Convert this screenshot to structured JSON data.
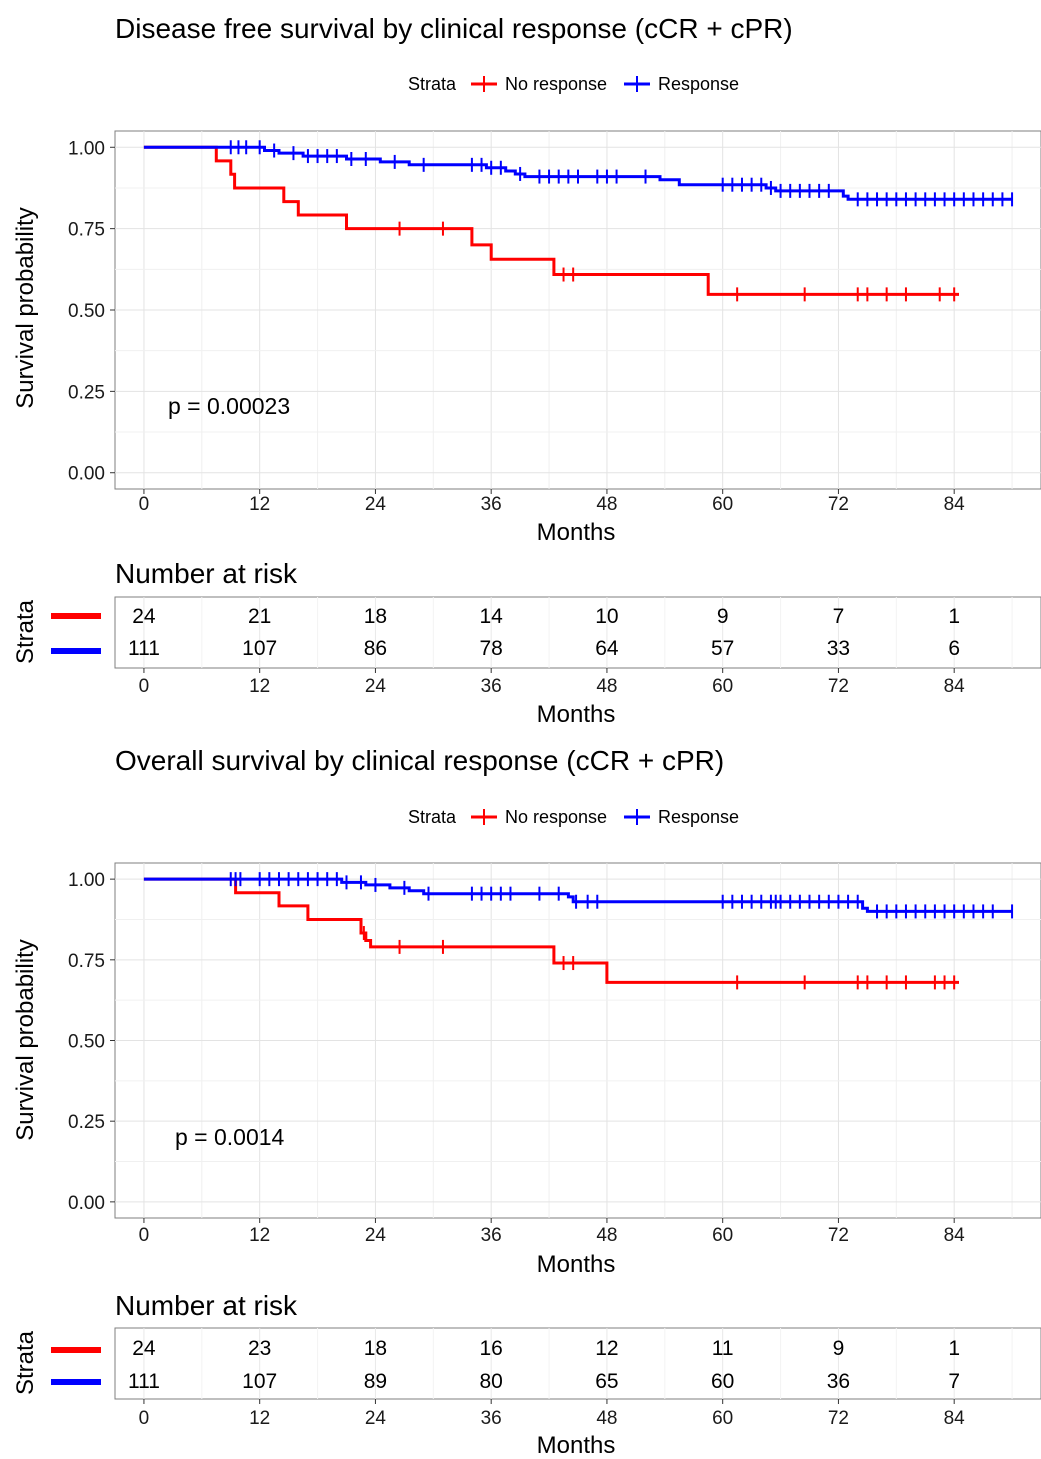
{
  "chart_data": [
    {
      "type": "line",
      "title": "Disease free survival by clinical response (cCR + cPR)",
      "legend": {
        "title": "Strata",
        "position": "top",
        "entries": [
          "No response",
          "Response"
        ]
      },
      "xlabel": "Months",
      "ylabel": "Survival probability",
      "xlim": [
        -3,
        93
      ],
      "ylim": [
        -0.05,
        1.05
      ],
      "x_ticks": [
        "0",
        "12",
        "24",
        "36",
        "48",
        "60",
        "72",
        "84"
      ],
      "y_ticks": [
        "0.00",
        "0.25",
        "0.50",
        "0.75",
        "1.00"
      ],
      "grid": true,
      "p_value_label": "p = 0.00023",
      "series": [
        {
          "name": "No response",
          "color": "#ff0000",
          "steps": [
            [
              0,
              1.0
            ],
            [
              7.5,
              0.958
            ],
            [
              9.0,
              0.917
            ],
            [
              9.4,
              0.875
            ],
            [
              14.5,
              0.833
            ],
            [
              16.0,
              0.792
            ],
            [
              21.0,
              0.75
            ],
            [
              34.0,
              0.7
            ],
            [
              36.0,
              0.656
            ],
            [
              42.5,
              0.609
            ],
            [
              58.5,
              0.548
            ],
            [
              84.5,
              0.548
            ]
          ],
          "censors": [
            26.5,
            31,
            43.5,
            44.5,
            61.5,
            68.5,
            74,
            75,
            77,
            79,
            82.5,
            84
          ]
        },
        {
          "name": "Response",
          "color": "#0000ff",
          "steps": [
            [
              0,
              1.0
            ],
            [
              12.5,
              0.99
            ],
            [
              14.0,
              0.982
            ],
            [
              16.5,
              0.973
            ],
            [
              21.0,
              0.964
            ],
            [
              24.5,
              0.955
            ],
            [
              27.5,
              0.946
            ],
            [
              35.5,
              0.937
            ],
            [
              37.5,
              0.927
            ],
            [
              38.5,
              0.918
            ],
            [
              39.5,
              0.91
            ],
            [
              53.5,
              0.9
            ],
            [
              55.5,
              0.885
            ],
            [
              64.5,
              0.875
            ],
            [
              65.5,
              0.866
            ],
            [
              72.5,
              0.85
            ],
            [
              73.0,
              0.84
            ],
            [
              90.0,
              0.84
            ]
          ],
          "censors": [
            9,
            9.8,
            10.6,
            12,
            13.5,
            15.5,
            17,
            18,
            19,
            20,
            21.5,
            23,
            26,
            29,
            34,
            35,
            36,
            37,
            39,
            41,
            42,
            43,
            44,
            45,
            47,
            48,
            49,
            52,
            60,
            61,
            62,
            63,
            64,
            65,
            66,
            67,
            68,
            69,
            70,
            71,
            74,
            75,
            76,
            77,
            78,
            79,
            80,
            81,
            82,
            83,
            84,
            85,
            86,
            87,
            88,
            89,
            90
          ]
        }
      ],
      "risk_table": {
        "title": "Number at risk",
        "y_label": "Strata",
        "xlabel": "Months",
        "times": [
          0,
          12,
          24,
          36,
          48,
          60,
          72,
          84
        ],
        "rows": [
          {
            "name": "No response",
            "color": "#ff0000",
            "values": [
              "24",
              "21",
              "18",
              "14",
              "10",
              "9",
              "7",
              "1"
            ]
          },
          {
            "name": "Response",
            "color": "#0000ff",
            "values": [
              "111",
              "107",
              "86",
              "78",
              "64",
              "57",
              "33",
              "6"
            ]
          }
        ]
      }
    },
    {
      "type": "line",
      "title": "Overall survival by clinical response (cCR + cPR)",
      "legend": {
        "title": "Strata",
        "position": "top",
        "entries": [
          "No response",
          "Response"
        ]
      },
      "xlabel": "Months",
      "ylabel": "Survival probability",
      "xlim": [
        -3,
        93
      ],
      "ylim": [
        -0.05,
        1.05
      ],
      "x_ticks": [
        "0",
        "12",
        "24",
        "36",
        "48",
        "60",
        "72",
        "84"
      ],
      "y_ticks": [
        "0.00",
        "0.25",
        "0.50",
        "0.75",
        "1.00"
      ],
      "grid": true,
      "p_value_label": "p = 0.0014",
      "series": [
        {
          "name": "No response",
          "color": "#ff0000",
          "steps": [
            [
              0,
              1.0
            ],
            [
              9.5,
              0.958
            ],
            [
              14.0,
              0.917
            ],
            [
              17.0,
              0.875
            ],
            [
              22.5,
              0.833
            ],
            [
              23.0,
              0.81
            ],
            [
              23.5,
              0.79
            ],
            [
              42.5,
              0.74
            ],
            [
              48.0,
              0.68
            ],
            [
              84.5,
              0.68
            ]
          ],
          "censors": [
            22.8,
            26.5,
            31,
            43.5,
            44.5,
            61.5,
            68.5,
            74,
            75,
            77,
            79,
            82,
            83,
            84
          ]
        },
        {
          "name": "Response",
          "color": "#0000ff",
          "steps": [
            [
              0,
              1.0
            ],
            [
              20.5,
              0.99
            ],
            [
              23.0,
              0.982
            ],
            [
              25.5,
              0.973
            ],
            [
              27.5,
              0.964
            ],
            [
              29.0,
              0.955
            ],
            [
              44.0,
              0.945
            ],
            [
              44.5,
              0.93
            ],
            [
              74.5,
              0.91
            ],
            [
              75.0,
              0.9
            ],
            [
              90.0,
              0.9
            ]
          ],
          "censors": [
            9,
            9.5,
            10,
            12,
            13,
            14,
            15,
            16,
            17,
            18,
            19,
            20,
            21,
            22.5,
            24,
            27,
            29.5,
            34,
            35,
            36,
            37,
            38,
            41,
            43,
            44.8,
            46,
            47,
            60,
            61,
            62,
            63,
            64,
            65,
            65.5,
            66,
            67,
            68,
            69,
            70,
            71,
            72,
            73,
            74,
            76,
            77,
            78,
            79,
            80,
            81,
            82,
            83,
            84,
            85,
            86,
            87,
            88,
            90
          ]
        }
      ],
      "risk_table": {
        "title": "Number at risk",
        "y_label": "Strata",
        "xlabel": "Months",
        "times": [
          0,
          12,
          24,
          36,
          48,
          60,
          72,
          84
        ],
        "rows": [
          {
            "name": "No response",
            "color": "#ff0000",
            "values": [
              "24",
              "23",
              "18",
              "16",
              "12",
              "11",
              "9",
              "1"
            ]
          },
          {
            "name": "Response",
            "color": "#0000ff",
            "values": [
              "111",
              "107",
              "89",
              "80",
              "65",
              "60",
              "36",
              "7"
            ]
          }
        ]
      }
    }
  ]
}
